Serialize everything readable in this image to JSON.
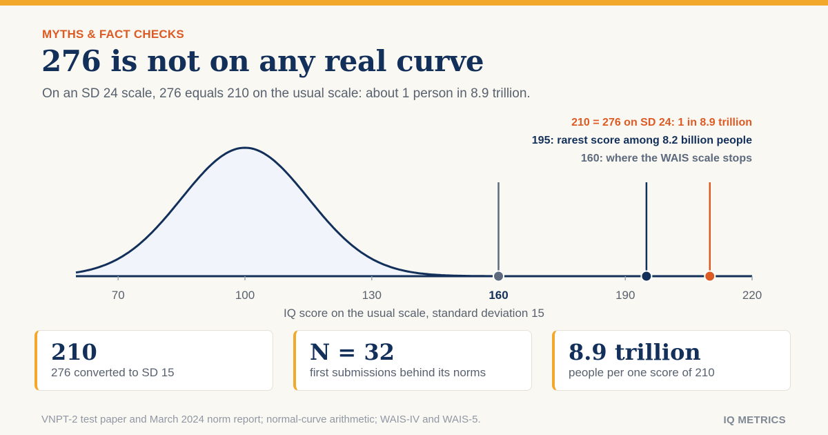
{
  "header": {
    "kicker": "MYTHS & FACT CHECKS",
    "title": "276 is not on any real curve",
    "subtitle": "On an SD 24 scale, 276 equals 210 on the usual scale: about 1 person in 8.9 trillion."
  },
  "colors": {
    "accent": "#f2a92b",
    "navy": "#13305a",
    "orange": "#dc5a24",
    "slate": "#5d6a7d",
    "curve_fill": "#f1f5fb"
  },
  "chart_data": {
    "type": "line",
    "series": [
      {
        "distribution": "normal",
        "mean": 100,
        "sd": 15
      }
    ],
    "xlabel": "IQ score on the usual scale, standard deviation 15",
    "xlim": [
      60,
      220
    ],
    "xticks": [
      70,
      100,
      130,
      160,
      190,
      220
    ],
    "highlighted_tick": 160,
    "markers": [
      {
        "x": 160,
        "label": "160: where the WAIS scale stops",
        "color": "#5d6a7d"
      },
      {
        "x": 195,
        "label": "195: rarest score among 8.2 billion people",
        "color": "#13305a"
      },
      {
        "x": 210,
        "label": "210 = 276 on SD 24: 1 in 8.9 trillion",
        "color": "#dc5a24"
      }
    ]
  },
  "stats": [
    {
      "value": "210",
      "label": "276 converted to SD 15"
    },
    {
      "value": "N = 32",
      "label": "first submissions behind its norms"
    },
    {
      "value": "8.9 trillion",
      "label": "people per one score of 210"
    }
  ],
  "footer": {
    "source": "VNPT-2 test paper and March 2024 norm report; normal-curve arithmetic; WAIS-IV and WAIS-5.",
    "brand": "IQ METRICS"
  }
}
